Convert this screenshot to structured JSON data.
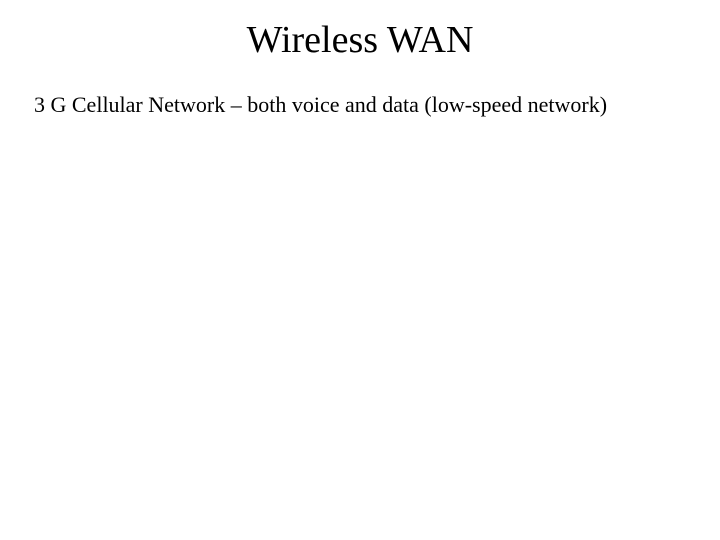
{
  "slide": {
    "title": "Wireless WAN",
    "body": "3 G Cellular Network – both voice and data (low-speed network)",
    "title_fontsize": 38,
    "body_fontsize": 22,
    "font_family": "Times New Roman",
    "text_color": "#000000",
    "background_color": "#ffffff"
  }
}
